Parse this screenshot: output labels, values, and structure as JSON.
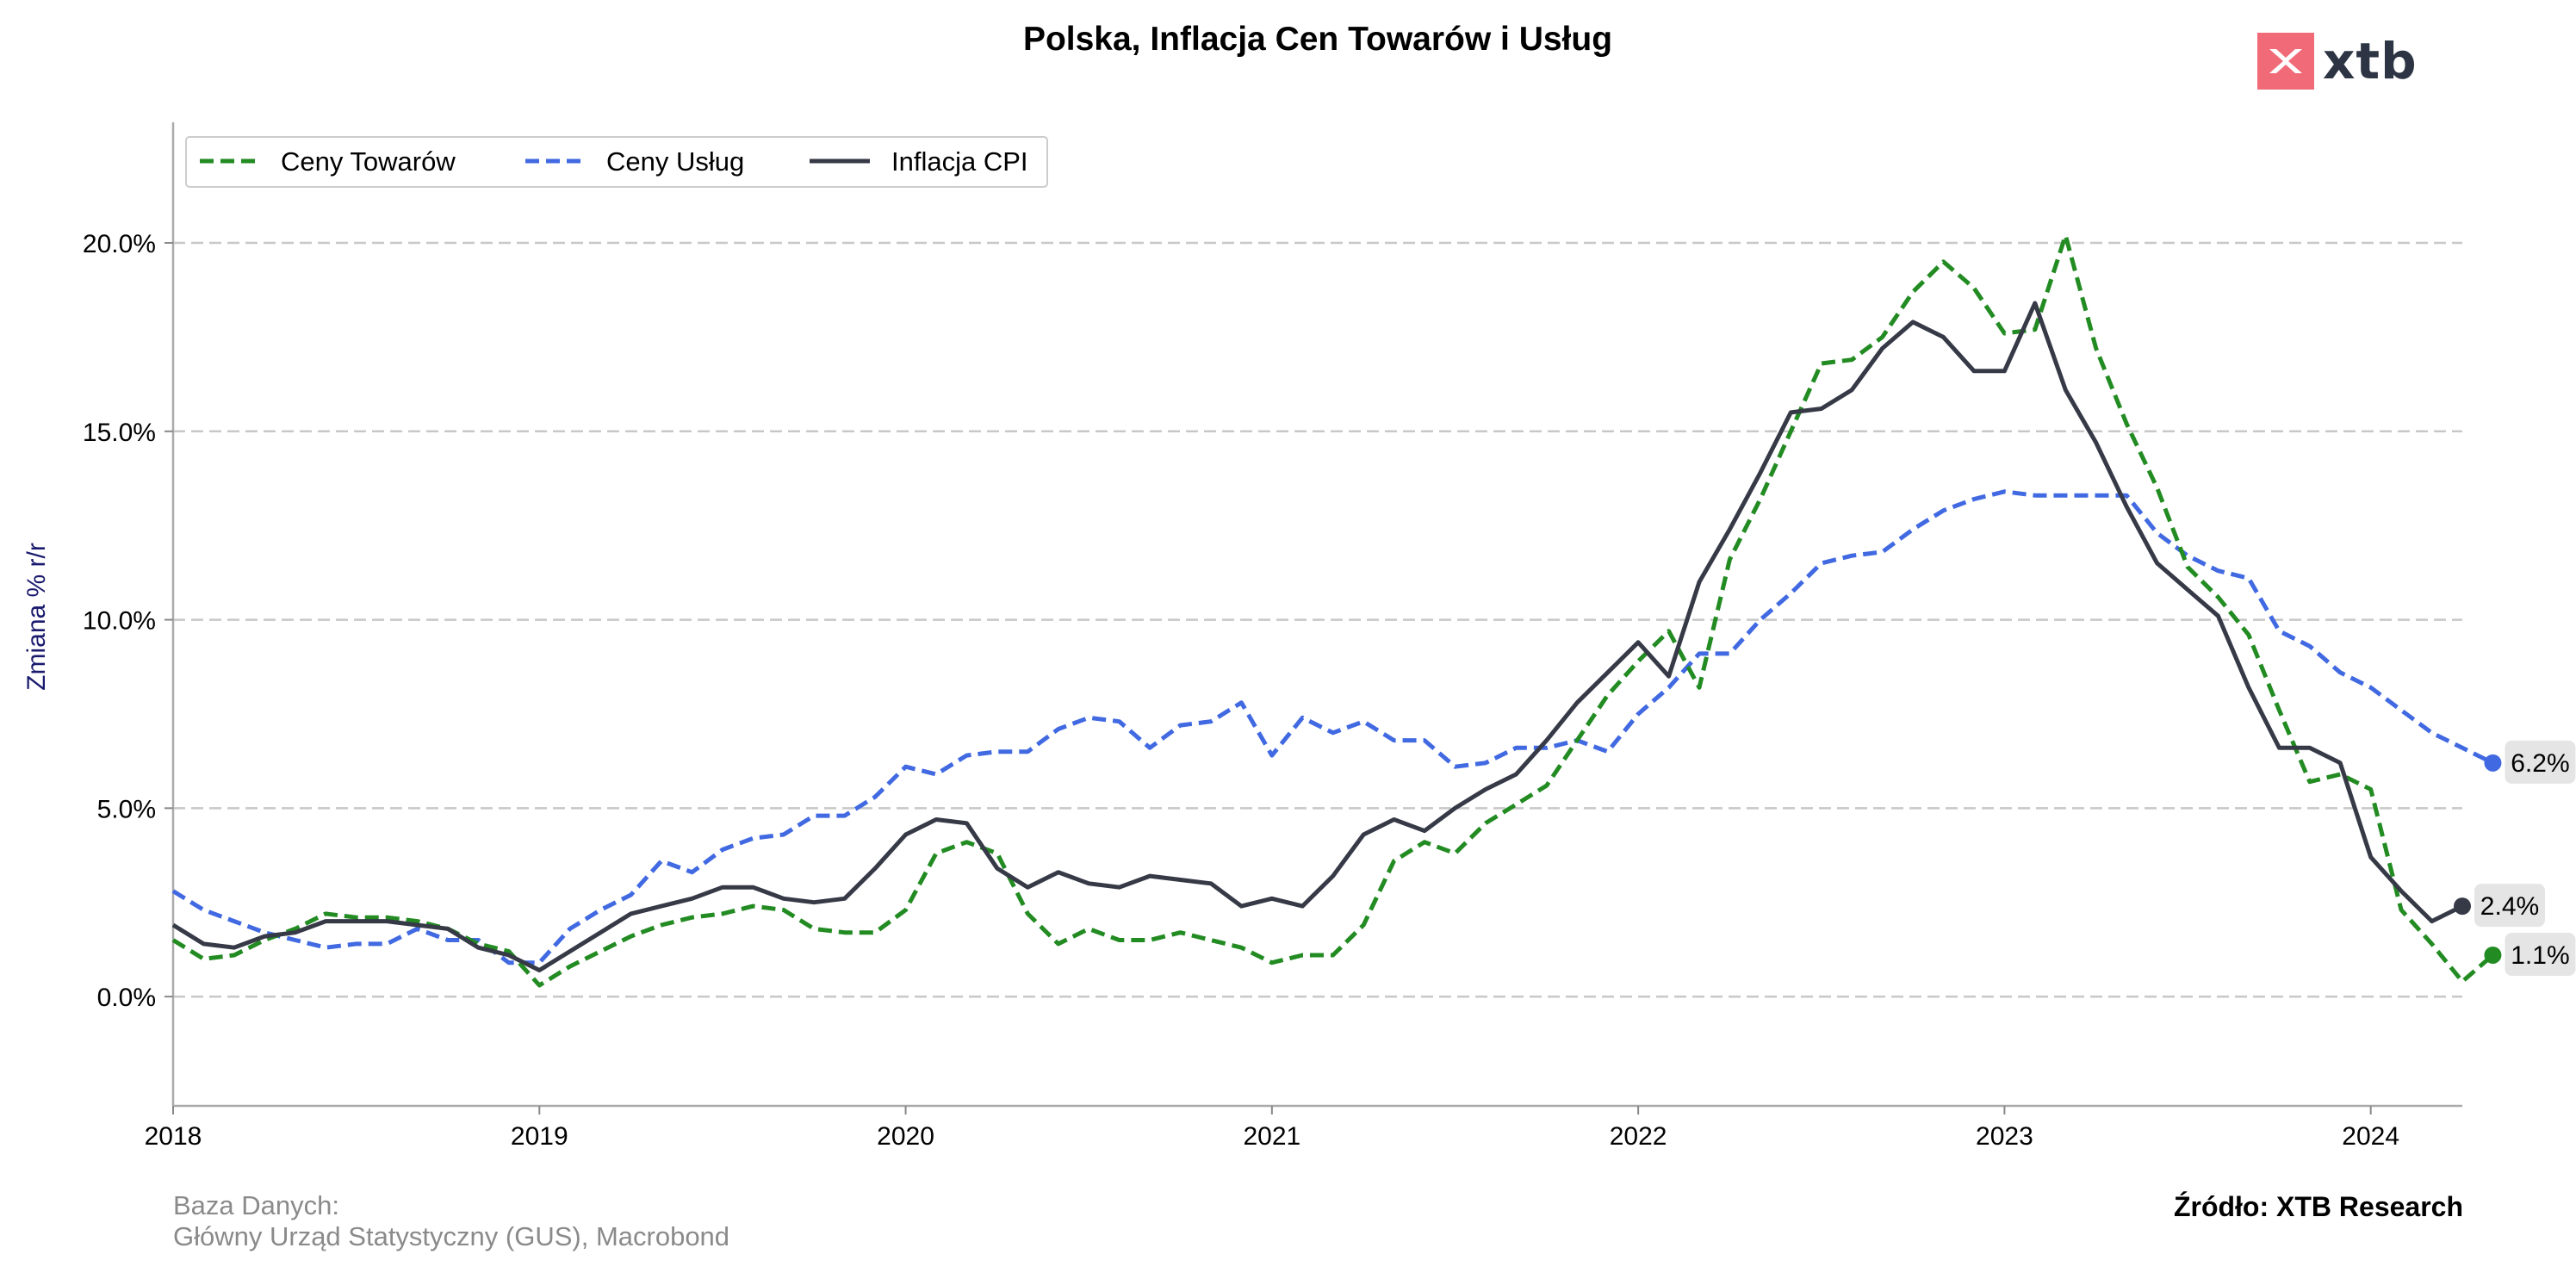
{
  "chart_data": {
    "type": "line",
    "title": "Polska, Inflacja Cen Towarów i Usług",
    "ylabel": "Zmiana % r/r",
    "xlabel": "",
    "x_start": "2018-01",
    "frequency": "monthly",
    "ylim": [
      -2.9,
      23.2
    ],
    "xlim": [
      "2018-01",
      "2024-04"
    ],
    "yticks": [
      "0.0%",
      "5.0%",
      "10.0%",
      "15.0%",
      "20.0%"
    ],
    "xticks": [
      "2018",
      "2019",
      "2020",
      "2021",
      "2022",
      "2023",
      "2024"
    ],
    "grid": "horizontal dashed",
    "legend_position": "top-left",
    "series": [
      {
        "name": "Ceny Towarów",
        "color": "#228b22",
        "style": "dashed",
        "end_label": "1.1%",
        "values": [
          1.5,
          1.0,
          1.1,
          1.5,
          1.8,
          2.2,
          2.1,
          2.1,
          2.0,
          1.8,
          1.4,
          1.2,
          0.3,
          0.8,
          1.2,
          1.6,
          1.9,
          2.1,
          2.2,
          2.4,
          2.3,
          1.8,
          1.7,
          1.7,
          2.3,
          3.8,
          4.1,
          3.8,
          2.2,
          1.4,
          1.8,
          1.5,
          1.5,
          1.7,
          1.5,
          1.3,
          0.9,
          1.1,
          1.1,
          1.9,
          3.6,
          4.1,
          3.8,
          4.6,
          5.1,
          5.6,
          6.8,
          8.0,
          8.9,
          9.7,
          8.2,
          11.6,
          13.2,
          15.0,
          16.8,
          16.9,
          17.5,
          18.7,
          19.5,
          18.8,
          17.6,
          17.7,
          20.2,
          17.2,
          15.2,
          13.5,
          11.4,
          10.6,
          9.6,
          7.6,
          5.7,
          5.9,
          5.5,
          2.3,
          1.4,
          0.4,
          1.1
        ]
      },
      {
        "name": "Ceny Usług",
        "color": "#4169e1",
        "style": "dashed",
        "end_label": "6.2%",
        "values": [
          2.8,
          2.3,
          2.0,
          1.7,
          1.5,
          1.3,
          1.4,
          1.4,
          1.8,
          1.5,
          1.5,
          0.9,
          0.9,
          1.8,
          2.3,
          2.7,
          3.6,
          3.3,
          3.9,
          4.2,
          4.3,
          4.8,
          4.8,
          5.3,
          6.1,
          5.9,
          6.4,
          6.5,
          6.5,
          7.1,
          7.4,
          7.3,
          6.6,
          7.2,
          7.3,
          7.8,
          6.4,
          7.4,
          7.0,
          7.3,
          6.8,
          6.8,
          6.1,
          6.2,
          6.6,
          6.6,
          6.8,
          6.5,
          7.5,
          8.2,
          9.1,
          9.1,
          10.0,
          10.7,
          11.5,
          11.7,
          11.8,
          12.4,
          12.9,
          13.2,
          13.4,
          13.3,
          13.3,
          13.3,
          13.3,
          12.3,
          11.7,
          11.3,
          11.1,
          9.7,
          9.3,
          8.6,
          8.2,
          7.6,
          7.0,
          6.6,
          6.2
        ]
      },
      {
        "name": "Inflacja CPI",
        "color": "#363a47",
        "style": "solid",
        "end_label": "2.4%",
        "values": [
          1.9,
          1.4,
          1.3,
          1.6,
          1.7,
          2.0,
          2.0,
          2.0,
          1.9,
          1.8,
          1.3,
          1.1,
          0.7,
          1.2,
          1.7,
          2.2,
          2.4,
          2.6,
          2.9,
          2.9,
          2.6,
          2.5,
          2.6,
          3.4,
          4.3,
          4.7,
          4.6,
          3.4,
          2.9,
          3.3,
          3.0,
          2.9,
          3.2,
          3.1,
          3.0,
          2.4,
          2.6,
          2.4,
          3.2,
          4.3,
          4.7,
          4.4,
          5.0,
          5.5,
          5.9,
          6.8,
          7.8,
          8.6,
          9.4,
          8.5,
          11.0,
          12.4,
          13.9,
          15.5,
          15.6,
          16.1,
          17.2,
          17.9,
          17.5,
          16.6,
          16.6,
          18.4,
          16.1,
          14.7,
          13.0,
          11.5,
          10.8,
          10.1,
          8.2,
          6.6,
          6.6,
          6.2,
          3.7,
          2.8,
          2.0,
          2.4
        ]
      }
    ],
    "end_labels_order": [
      "6.2%",
      "2.4%",
      "1.1%"
    ]
  },
  "logo": {
    "name": "xtb",
    "text": "xtb"
  },
  "footer": {
    "source_db_label": "Baza Danych:",
    "source_db_value": "Główny Urząd Statystyczny (GUS), Macrobond",
    "source": "Źródło: XTB Research"
  }
}
